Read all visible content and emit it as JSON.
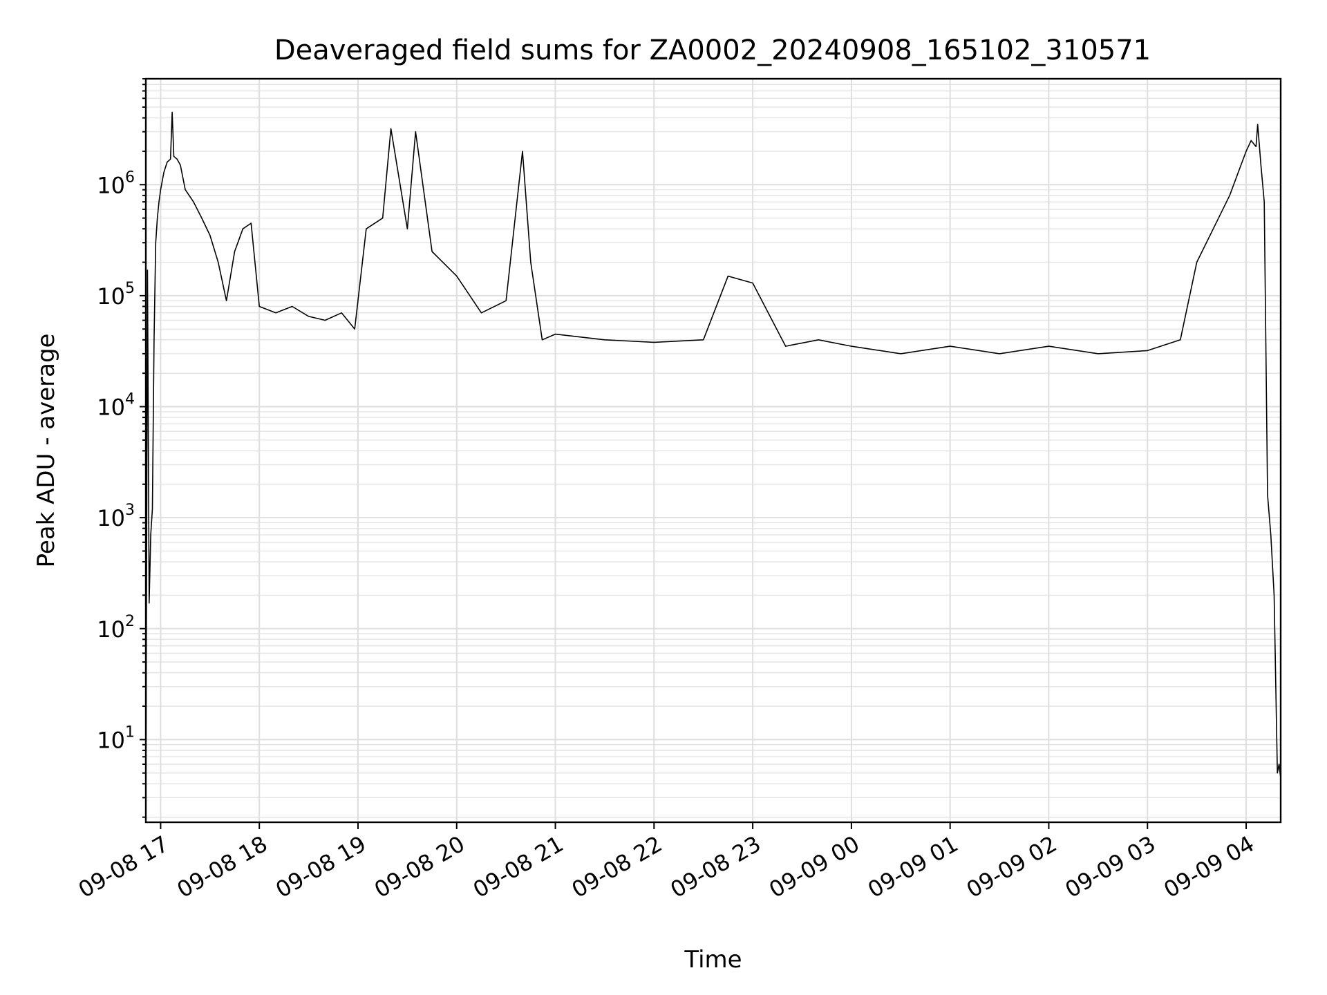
{
  "chart_data": {
    "type": "line",
    "title": "Deaveraged field sums for ZA0002_20240908_165102_310571",
    "xlabel": "Time",
    "ylabel": "Peak ADU - average",
    "x_axis": {
      "type": "time",
      "range": [
        "2024-09-08 16:51",
        "2024-09-09 04:21"
      ],
      "tick_values": [
        "2024-09-08 17:00",
        "2024-09-08 18:00",
        "2024-09-08 19:00",
        "2024-09-08 20:00",
        "2024-09-08 21:00",
        "2024-09-08 22:00",
        "2024-09-08 23:00",
        "2024-09-09 00:00",
        "2024-09-09 01:00",
        "2024-09-09 02:00",
        "2024-09-09 03:00",
        "2024-09-09 04:00"
      ],
      "tick_labels": [
        "09-08 17",
        "09-08 18",
        "09-08 19",
        "09-08 20",
        "09-08 21",
        "09-08 22",
        "09-08 23",
        "09-09 00",
        "09-09 01",
        "09-09 02",
        "09-09 03",
        "09-09 04"
      ]
    },
    "y_axis": {
      "scale": "log",
      "range": [
        1.8,
        9000000
      ],
      "tick_values": [
        10,
        100,
        1000,
        10000,
        100000,
        1000000
      ],
      "tick_labels": [
        {
          "base": "10",
          "exp": "1"
        },
        {
          "base": "10",
          "exp": "2"
        },
        {
          "base": "10",
          "exp": "3"
        },
        {
          "base": "10",
          "exp": "4"
        },
        {
          "base": "10",
          "exp": "5"
        },
        {
          "base": "10",
          "exp": "6"
        }
      ]
    },
    "grid": true,
    "legend": "none",
    "series": [
      {
        "color": "#000000",
        "points": [
          [
            "2024-09-08 16:51",
            2
          ],
          [
            "2024-09-08 16:52",
            170000
          ],
          [
            "2024-09-08 16:53",
            170
          ],
          [
            "2024-09-08 16:54",
            700
          ],
          [
            "2024-09-08 16:55",
            1200
          ],
          [
            "2024-09-08 16:56",
            40000
          ],
          [
            "2024-09-08 16:57",
            300000
          ],
          [
            "2024-09-08 16:58",
            500000
          ],
          [
            "2024-09-08 16:59",
            700000
          ],
          [
            "2024-09-08 17:00",
            900000
          ],
          [
            "2024-09-08 17:02",
            1300000
          ],
          [
            "2024-09-08 17:04",
            1600000
          ],
          [
            "2024-09-08 17:06",
            1700000
          ],
          [
            "2024-09-08 17:07",
            4500000
          ],
          [
            "2024-09-08 17:08",
            1800000
          ],
          [
            "2024-09-08 17:10",
            1700000
          ],
          [
            "2024-09-08 17:12",
            1500000
          ],
          [
            "2024-09-08 17:15",
            900000
          ],
          [
            "2024-09-08 17:20",
            700000
          ],
          [
            "2024-09-08 17:25",
            500000
          ],
          [
            "2024-09-08 17:30",
            350000
          ],
          [
            "2024-09-08 17:35",
            200000
          ],
          [
            "2024-09-08 17:40",
            90000
          ],
          [
            "2024-09-08 17:45",
            250000
          ],
          [
            "2024-09-08 17:50",
            400000
          ],
          [
            "2024-09-08 17:55",
            450000
          ],
          [
            "2024-09-08 18:00",
            80000
          ],
          [
            "2024-09-08 18:10",
            70000
          ],
          [
            "2024-09-08 18:20",
            80000
          ],
          [
            "2024-09-08 18:30",
            65000
          ],
          [
            "2024-09-08 18:40",
            60000
          ],
          [
            "2024-09-08 18:50",
            70000
          ],
          [
            "2024-09-08 18:58",
            50000
          ],
          [
            "2024-09-08 19:05",
            400000
          ],
          [
            "2024-09-08 19:15",
            500000
          ],
          [
            "2024-09-08 19:20",
            3200000
          ],
          [
            "2024-09-08 19:30",
            400000
          ],
          [
            "2024-09-08 19:35",
            3000000
          ],
          [
            "2024-09-08 19:45",
            250000
          ],
          [
            "2024-09-08 20:00",
            150000
          ],
          [
            "2024-09-08 20:15",
            70000
          ],
          [
            "2024-09-08 20:30",
            90000
          ],
          [
            "2024-09-08 20:40",
            2000000
          ],
          [
            "2024-09-08 20:45",
            200000
          ],
          [
            "2024-09-08 20:52",
            40000
          ],
          [
            "2024-09-08 21:00",
            45000
          ],
          [
            "2024-09-08 21:30",
            40000
          ],
          [
            "2024-09-08 22:00",
            38000
          ],
          [
            "2024-09-08 22:30",
            40000
          ],
          [
            "2024-09-08 22:45",
            150000
          ],
          [
            "2024-09-08 23:00",
            130000
          ],
          [
            "2024-09-08 23:20",
            35000
          ],
          [
            "2024-09-08 23:40",
            40000
          ],
          [
            "2024-09-09 00:00",
            35000
          ],
          [
            "2024-09-09 00:30",
            30000
          ],
          [
            "2024-09-09 01:00",
            35000
          ],
          [
            "2024-09-09 01:30",
            30000
          ],
          [
            "2024-09-09 02:00",
            35000
          ],
          [
            "2024-09-09 02:30",
            30000
          ],
          [
            "2024-09-09 03:00",
            32000
          ],
          [
            "2024-09-09 03:20",
            40000
          ],
          [
            "2024-09-09 03:30",
            200000
          ],
          [
            "2024-09-09 03:40",
            400000
          ],
          [
            "2024-09-09 03:50",
            800000
          ],
          [
            "2024-09-09 04:00",
            2000000
          ],
          [
            "2024-09-09 04:03",
            2500000
          ],
          [
            "2024-09-09 04:06",
            2200000
          ],
          [
            "2024-09-09 04:07",
            3500000
          ],
          [
            "2024-09-09 04:09",
            1500000
          ],
          [
            "2024-09-09 04:11",
            700000
          ],
          [
            "2024-09-09 04:13",
            1600
          ],
          [
            "2024-09-09 04:15",
            700
          ],
          [
            "2024-09-09 04:17",
            200
          ],
          [
            "2024-09-09 04:19",
            5
          ],
          [
            "2024-09-09 04:20",
            6
          ],
          [
            "2024-09-09 04:21",
            4.5
          ]
        ]
      }
    ]
  }
}
